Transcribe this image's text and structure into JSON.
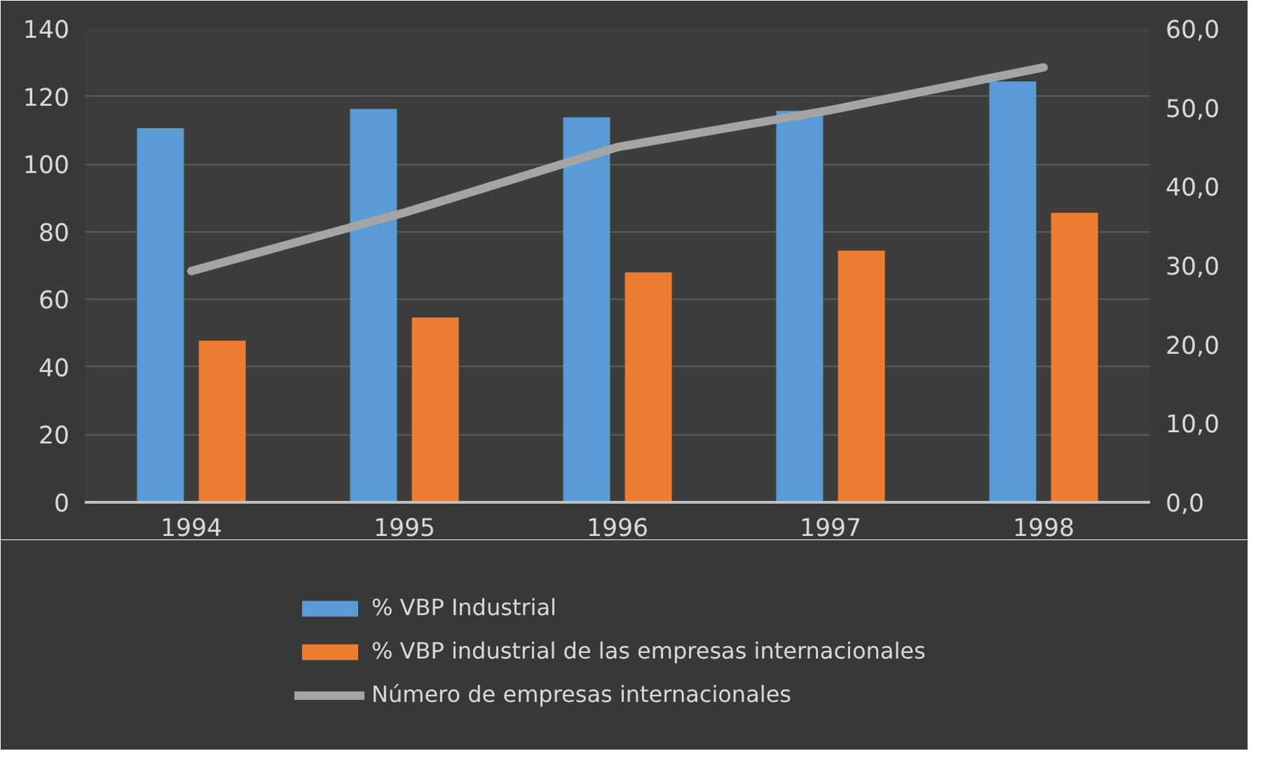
{
  "chart_data": {
    "type": "bar",
    "categories": [
      "1994",
      "1995",
      "1996",
      "1997",
      "1998"
    ],
    "series": [
      {
        "name": "% VBP Industrial",
        "color": "#5b9bd5",
        "values": [
          110.6,
          116.3,
          113.8,
          115.7,
          124.4
        ]
      },
      {
        "name": "% VBP industrial de las empresas internacionales",
        "color": "#ed7d31",
        "values": [
          47.8,
          54.6,
          68.0,
          74.4,
          85.6
        ]
      },
      {
        "name": "Número de empresas internacionales",
        "color": "#a5a5a5",
        "type": "line",
        "axis": "y2",
        "values": [
          29.3,
          36.7,
          45.0,
          49.7,
          55.1
        ]
      }
    ],
    "ylim": [
      0,
      140
    ],
    "yticks": [
      0,
      20,
      40,
      60,
      80,
      100,
      120,
      140
    ],
    "y2lim": [
      0,
      60
    ],
    "y2ticks": [
      {
        "value": 0,
        "label": "0,0"
      },
      {
        "value": 10,
        "label": "10,0"
      },
      {
        "value": 20,
        "label": "20,0"
      },
      {
        "value": 30,
        "label": "30,0"
      },
      {
        "value": 40,
        "label": "40,0"
      },
      {
        "value": 50,
        "label": "50,0"
      },
      {
        "value": 60,
        "label": "60,0"
      }
    ],
    "grid": "y",
    "legend": "bottom",
    "marker": "none",
    "line_style": "solid"
  }
}
